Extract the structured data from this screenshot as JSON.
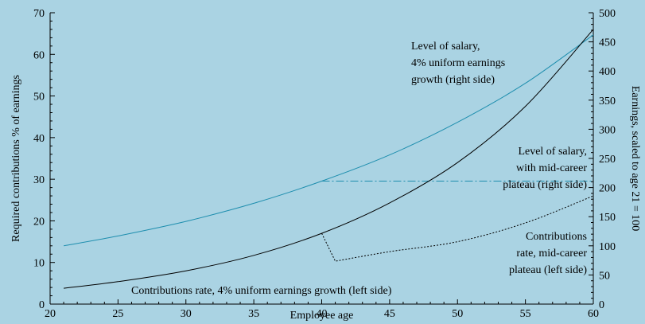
{
  "chart_data": {
    "type": "line",
    "title": "",
    "xlabel": "Employee age",
    "ylabel_left": "Required contributions % of earnings",
    "ylabel_right": "Earnings, scaled to age 21 = 100",
    "xlim": [
      20,
      60
    ],
    "ylim_left": [
      0,
      70
    ],
    "ylim_right": [
      0,
      500
    ],
    "x_ticks": [
      20,
      25,
      30,
      35,
      40,
      45,
      50,
      55,
      60
    ],
    "y_left_ticks": [
      0,
      10,
      20,
      30,
      40,
      50,
      60,
      70
    ],
    "y_right_ticks": [
      0,
      50,
      100,
      150,
      200,
      250,
      300,
      350,
      400,
      450,
      500
    ],
    "grid": false,
    "legend": "none",
    "series": [
      {
        "name": "Level of salary, 4% uniform earnings growth (right side)",
        "axis": "right",
        "color": "#1e8eae",
        "style": "solid",
        "x": [
          21,
          25,
          30,
          35,
          40,
          45,
          50,
          55,
          60
        ],
        "y": [
          100,
          117,
          142,
          173,
          211,
          256,
          312,
          379,
          462
        ]
      },
      {
        "name": "Level of salary, with mid-career plateau (right side)",
        "axis": "right",
        "color": "#1e8eae",
        "style": "dashdot",
        "x": [
          40,
          60
        ],
        "y": [
          211,
          211
        ]
      },
      {
        "name": "Contributions rate, 4% uniform earnings growth (left side)",
        "axis": "left",
        "color": "#000000",
        "style": "solid",
        "x": [
          21,
          25,
          30,
          35,
          40,
          45,
          50,
          55,
          60
        ],
        "y": [
          3.8,
          5.4,
          8.0,
          11.7,
          17.0,
          24.3,
          34.0,
          47.5,
          66.0
        ]
      },
      {
        "name": "Contributions rate, mid-career plateau (left side)",
        "axis": "left",
        "color": "#000000",
        "style": "dotted",
        "x": [
          40,
          41,
          45,
          50,
          55,
          60
        ],
        "y": [
          17.0,
          10.3,
          12.6,
          15.0,
          19.5,
          26.0
        ]
      }
    ],
    "annotations": [
      {
        "id": "salary-uniform",
        "lines": [
          "Level of salary,",
          "4% uniform earnings",
          "growth (right side)"
        ]
      },
      {
        "id": "salary-plateau",
        "lines": [
          "Level of salary,",
          "with mid-career",
          "plateau (right side)"
        ]
      },
      {
        "id": "contrib-plateau",
        "lines": [
          "Contributions",
          "rate, mid-career",
          "plateau (left side)"
        ]
      },
      {
        "id": "contrib-uniform",
        "lines": [
          "Contributions rate, 4% uniform earnings growth (left side)"
        ]
      }
    ],
    "colors": {
      "background": "#aad3e3",
      "salary": "#1e8eae",
      "contributions": "#000000"
    }
  }
}
